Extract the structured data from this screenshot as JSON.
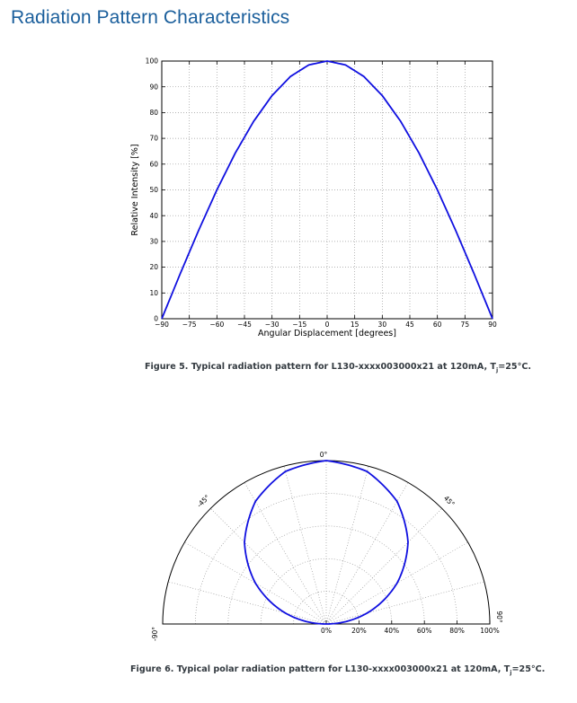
{
  "page": {
    "title": "Radiation Pattern Characteristics"
  },
  "figure5": {
    "caption_main": "Figure 5. Typical radiation pattern for L130-xxxx003000x21 at 120mA, T",
    "caption_sub": "j",
    "caption_tail": "=25°C."
  },
  "figure6": {
    "caption_main": "Figure 6. Typical polar radiation pattern for L130-xxxx003000x21 at 120mA, T",
    "caption_sub": "j",
    "caption_tail": "=25°C."
  },
  "chart_data": [
    {
      "type": "line",
      "title": "",
      "xlabel": "Angular Displacement [degrees]",
      "ylabel": "Relative Intensity [%]",
      "xlim": [
        -90,
        90
      ],
      "ylim": [
        0,
        100
      ],
      "xticks": [
        -90,
        -75,
        -60,
        -45,
        -30,
        -15,
        0,
        15,
        30,
        45,
        60,
        75,
        90
      ],
      "xtick_labels": [
        "−90",
        "−75",
        "−60",
        "−45",
        "−30",
        "−15",
        "0",
        "15",
        "30",
        "45",
        "60",
        "75",
        "90"
      ],
      "yticks": [
        0,
        10,
        20,
        30,
        40,
        50,
        60,
        70,
        80,
        90,
        100
      ],
      "ytick_labels": [
        "0",
        "10",
        "20",
        "30",
        "40",
        "50",
        "60",
        "70",
        "80",
        "90",
        "100"
      ],
      "grid": true,
      "color": "#1010e0",
      "x": [
        -90,
        -80,
        -70,
        -60,
        -50,
        -40,
        -30,
        -20,
        -10,
        0,
        10,
        20,
        30,
        40,
        50,
        60,
        70,
        80,
        90
      ],
      "y": [
        0,
        17.4,
        34.2,
        50,
        64.3,
        76.6,
        86.6,
        94,
        98.5,
        100,
        98.5,
        94,
        86.6,
        76.6,
        64.3,
        50,
        34.2,
        17.4,
        0
      ]
    },
    {
      "type": "polar",
      "title": "",
      "angle_range": [
        -90,
        90
      ],
      "angle_labels": [
        "0°",
        "45°",
        "-45°",
        "90°",
        "-90°"
      ],
      "radial_ticks": [
        0,
        20,
        40,
        60,
        80,
        100
      ],
      "radial_tick_labels": [
        "0%",
        "20%",
        "40%",
        "60%",
        "80%",
        "100%"
      ],
      "grid": true,
      "color": "#1010e0",
      "angles": [
        -90,
        -75,
        -60,
        -45,
        -30,
        -15,
        0,
        15,
        30,
        45,
        60,
        75,
        90
      ],
      "values": [
        0,
        25.9,
        50,
        70.7,
        86.6,
        96.6,
        100,
        96.6,
        86.6,
        70.7,
        50,
        25.9,
        0
      ]
    }
  ]
}
